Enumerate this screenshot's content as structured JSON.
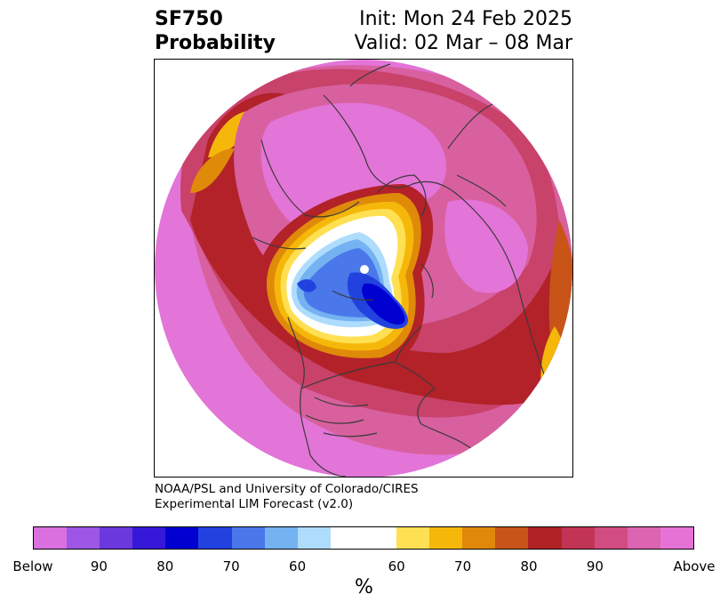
{
  "header": {
    "title_line1": "SF750",
    "title_line2": "Probability",
    "init": "Init: Mon 24 Feb 2025",
    "valid": "Valid: 02 Mar – 08 Mar"
  },
  "credit": {
    "line1": "NOAA/PSL and University of Colorado/CIRES",
    "line2": "Experimental LIM Forecast (v2.0)"
  },
  "colorbar": {
    "colors": [
      "#da70e0",
      "#9d56e6",
      "#6a38dc",
      "#3818d8",
      "#0000d0",
      "#2242e0",
      "#4a78ea",
      "#74b2f2",
      "#aedcfc",
      "#ffffff",
      "#ffe052",
      "#f5b80a",
      "#e0880a",
      "#c85418",
      "#b02226",
      "#c23454",
      "#d14c80",
      "#dc64b0",
      "#e672d6"
    ],
    "tick_labels": [
      "Below",
      "90",
      "80",
      "70",
      "60",
      "60",
      "70",
      "80",
      "90",
      "Above"
    ],
    "unit": "%"
  },
  "map": {
    "colors": {
      "magenta": "#e374d8",
      "pink": "#d8609e",
      "rose": "#c8426a",
      "red": "#b22228",
      "orange_red": "#c85418",
      "orange": "#e08a0a",
      "gold": "#f5b80a",
      "yellow": "#ffe052",
      "white": "#ffffff",
      "pale_blue": "#aedcfc",
      "light_blue": "#74b2f2",
      "blue": "#4a78ea",
      "mid_blue": "#2242e0",
      "deep_blue": "#0000d0",
      "coast": "#3a3a3a"
    }
  }
}
